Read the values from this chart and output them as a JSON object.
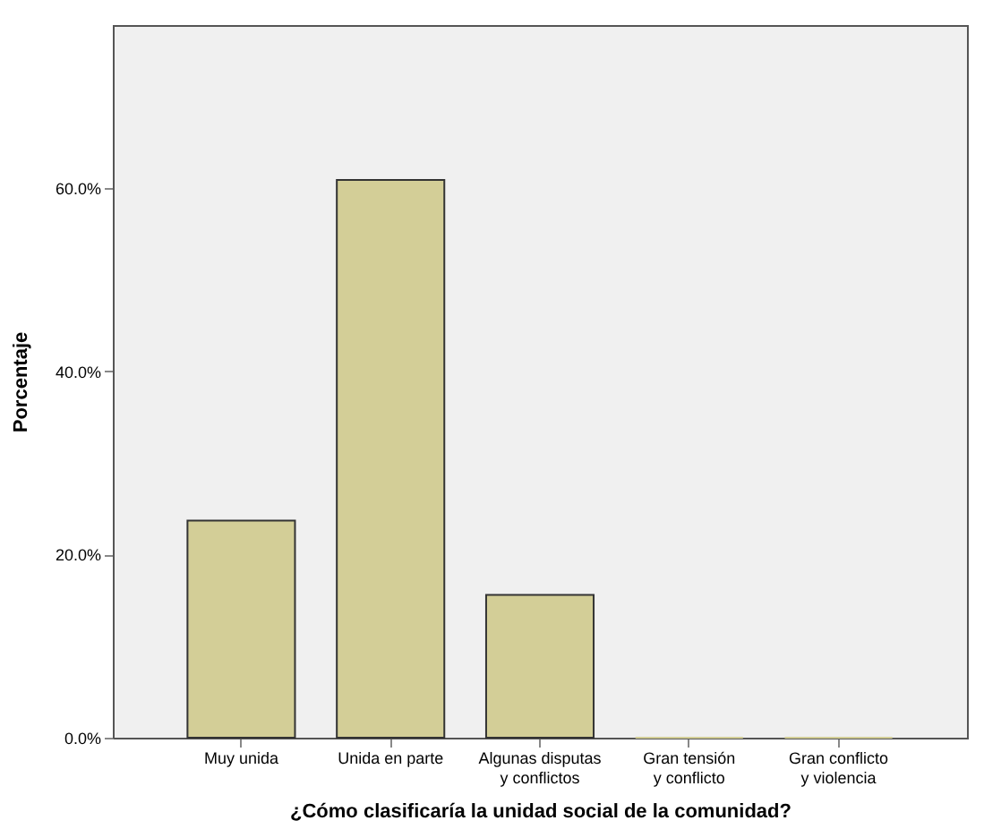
{
  "chart_data": {
    "type": "bar",
    "xlabel": "¿Cómo clasificaría la unidad social de la comunidad?",
    "ylabel": "Porcentaje",
    "categories": [
      "Muy unida",
      "Unida en parte",
      "Algunas disputas y conflictos",
      "Gran tensión y conflicto",
      "Gran conflicto y violencia"
    ],
    "values": [
      23.7,
      60.9,
      15.6,
      0,
      0
    ],
    "color": "#d3ce97",
    "ylim": [
      0,
      77.8
    ],
    "yticks": [
      {
        "value": 0,
        "label": "0.0%"
      },
      {
        "value": 20,
        "label": "20.0%"
      },
      {
        "value": 40,
        "label": "40.0%"
      },
      {
        "value": 60,
        "label": "60.0%"
      }
    ],
    "grid": false
  }
}
